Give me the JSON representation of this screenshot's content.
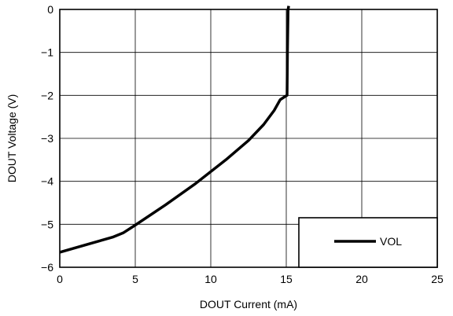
{
  "chart_data": {
    "type": "line",
    "xlabel": "DOUT Current (mA)",
    "ylabel": "DOUT Voltage (V)",
    "xlim": [
      0,
      25
    ],
    "ylim": [
      -6,
      0
    ],
    "x_ticks": [
      "0",
      "5",
      "10",
      "15",
      "20",
      "25"
    ],
    "y_ticks": [
      "0",
      "−1",
      "−2",
      "−3",
      "−4",
      "−5",
      "−6"
    ],
    "grid": true,
    "legend_position": "bottom-right",
    "series": [
      {
        "name": "VOL",
        "color": "#000000",
        "x": [
          0,
          2,
          3.5,
          4.2,
          5,
          7,
          9,
          11,
          12.5,
          13.5,
          14.2,
          14.6,
          14.9,
          15.05,
          15.08,
          15.12,
          15.16
        ],
        "y": [
          -5.65,
          -5.45,
          -5.3,
          -5.2,
          -5.02,
          -4.55,
          -4.05,
          -3.5,
          -3.05,
          -2.68,
          -2.35,
          -2.1,
          -2.03,
          -2.0,
          -1.0,
          0.0,
          0.08
        ]
      }
    ]
  }
}
